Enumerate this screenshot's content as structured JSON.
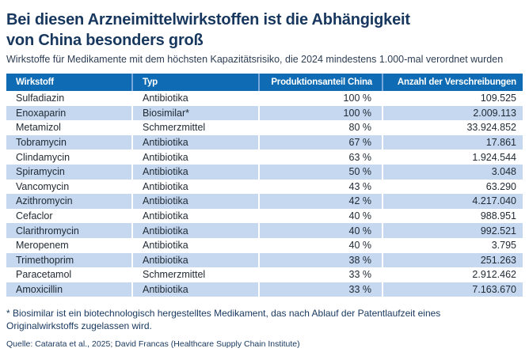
{
  "page": {
    "title_line1": "Bei diesen Arzneimittelwirkstoffen ist die Abhängigkeit",
    "title_line2": "von China besonders groß",
    "subtitle": "Wirkstoffe für Medikamente mit dem höchsten Kapazitätsrisiko, die 2024 mindestens 1.000-mal verordnet wurden",
    "footnote_line1": "* Biosimilar ist ein biotechnologisch hergestelltes Medikament, das nach Ablauf der Patentlaufzeit eines",
    "footnote_line2": "Originalwirkstoffs zugelassen wird.",
    "source": "Quelle: Catarata et al., 2025; David Francas (Healthcare Supply Chain Institute)"
  },
  "chart_data": {
    "type": "table",
    "title": "Bei diesen Arzneimittelwirkstoffen ist die Abhängigkeit von China besonders groß",
    "subtitle": "Wirkstoffe für Medikamente mit dem höchsten Kapazitätsrisiko, die 2024 mindestens 1.000-mal verordnet wurden",
    "columns": [
      "Wirkstoff",
      "Typ",
      "Produktionsanteil China",
      "Anzahl der Verschreibungen"
    ],
    "rows": [
      [
        "Sulfadiazin",
        "Antibiotika",
        "100 %",
        "109.525"
      ],
      [
        "Enoxaparin",
        "Biosimilar*",
        "100 %",
        "2.009.113"
      ],
      [
        "Metamizol",
        "Schmerzmittel",
        "80 %",
        "33.924.852"
      ],
      [
        "Tobramycin",
        "Antibiotika",
        "67 %",
        "17.861"
      ],
      [
        "Clindamycin",
        "Antibiotika",
        "63 %",
        "1.924.544"
      ],
      [
        "Spiramycin",
        "Antibiotika",
        "50 %",
        "3.048"
      ],
      [
        "Vancomycin",
        "Antibiotika",
        "43 %",
        "63.290"
      ],
      [
        "Azithromycin",
        "Antibiotika",
        "42 %",
        "4.217.040"
      ],
      [
        "Cefaclor",
        "Antibiotika",
        "40 %",
        "988.951"
      ],
      [
        "Clarithromycin",
        "Antibiotika",
        "40 %",
        "992.521"
      ],
      [
        "Meropenem",
        "Antibiotika",
        "40 %",
        "3.795"
      ],
      [
        "Trimethoprim",
        "Antibiotika",
        "38 %",
        "251.263"
      ],
      [
        "Paracetamol",
        "Schmerzmittel",
        "33 %",
        "2.912.462"
      ],
      [
        "Amoxicillin",
        "Antibiotika",
        "33 %",
        "7.163.670"
      ]
    ],
    "production_share_china_pct": [
      100,
      100,
      80,
      67,
      63,
      50,
      43,
      42,
      40,
      40,
      40,
      38,
      33,
      33
    ],
    "prescriptions": [
      109525,
      2009113,
      33924852,
      17861,
      1924544,
      3048,
      63290,
      4217040,
      988951,
      992521,
      3795,
      251263,
      2912462,
      7163670
    ]
  },
  "colors": {
    "header_bg": "#0f6cb4",
    "header_separator": "#7ba6d9",
    "row_alt_bg": "#c5d8f0",
    "title_text": "#17375e",
    "body_text": "#222b35"
  }
}
